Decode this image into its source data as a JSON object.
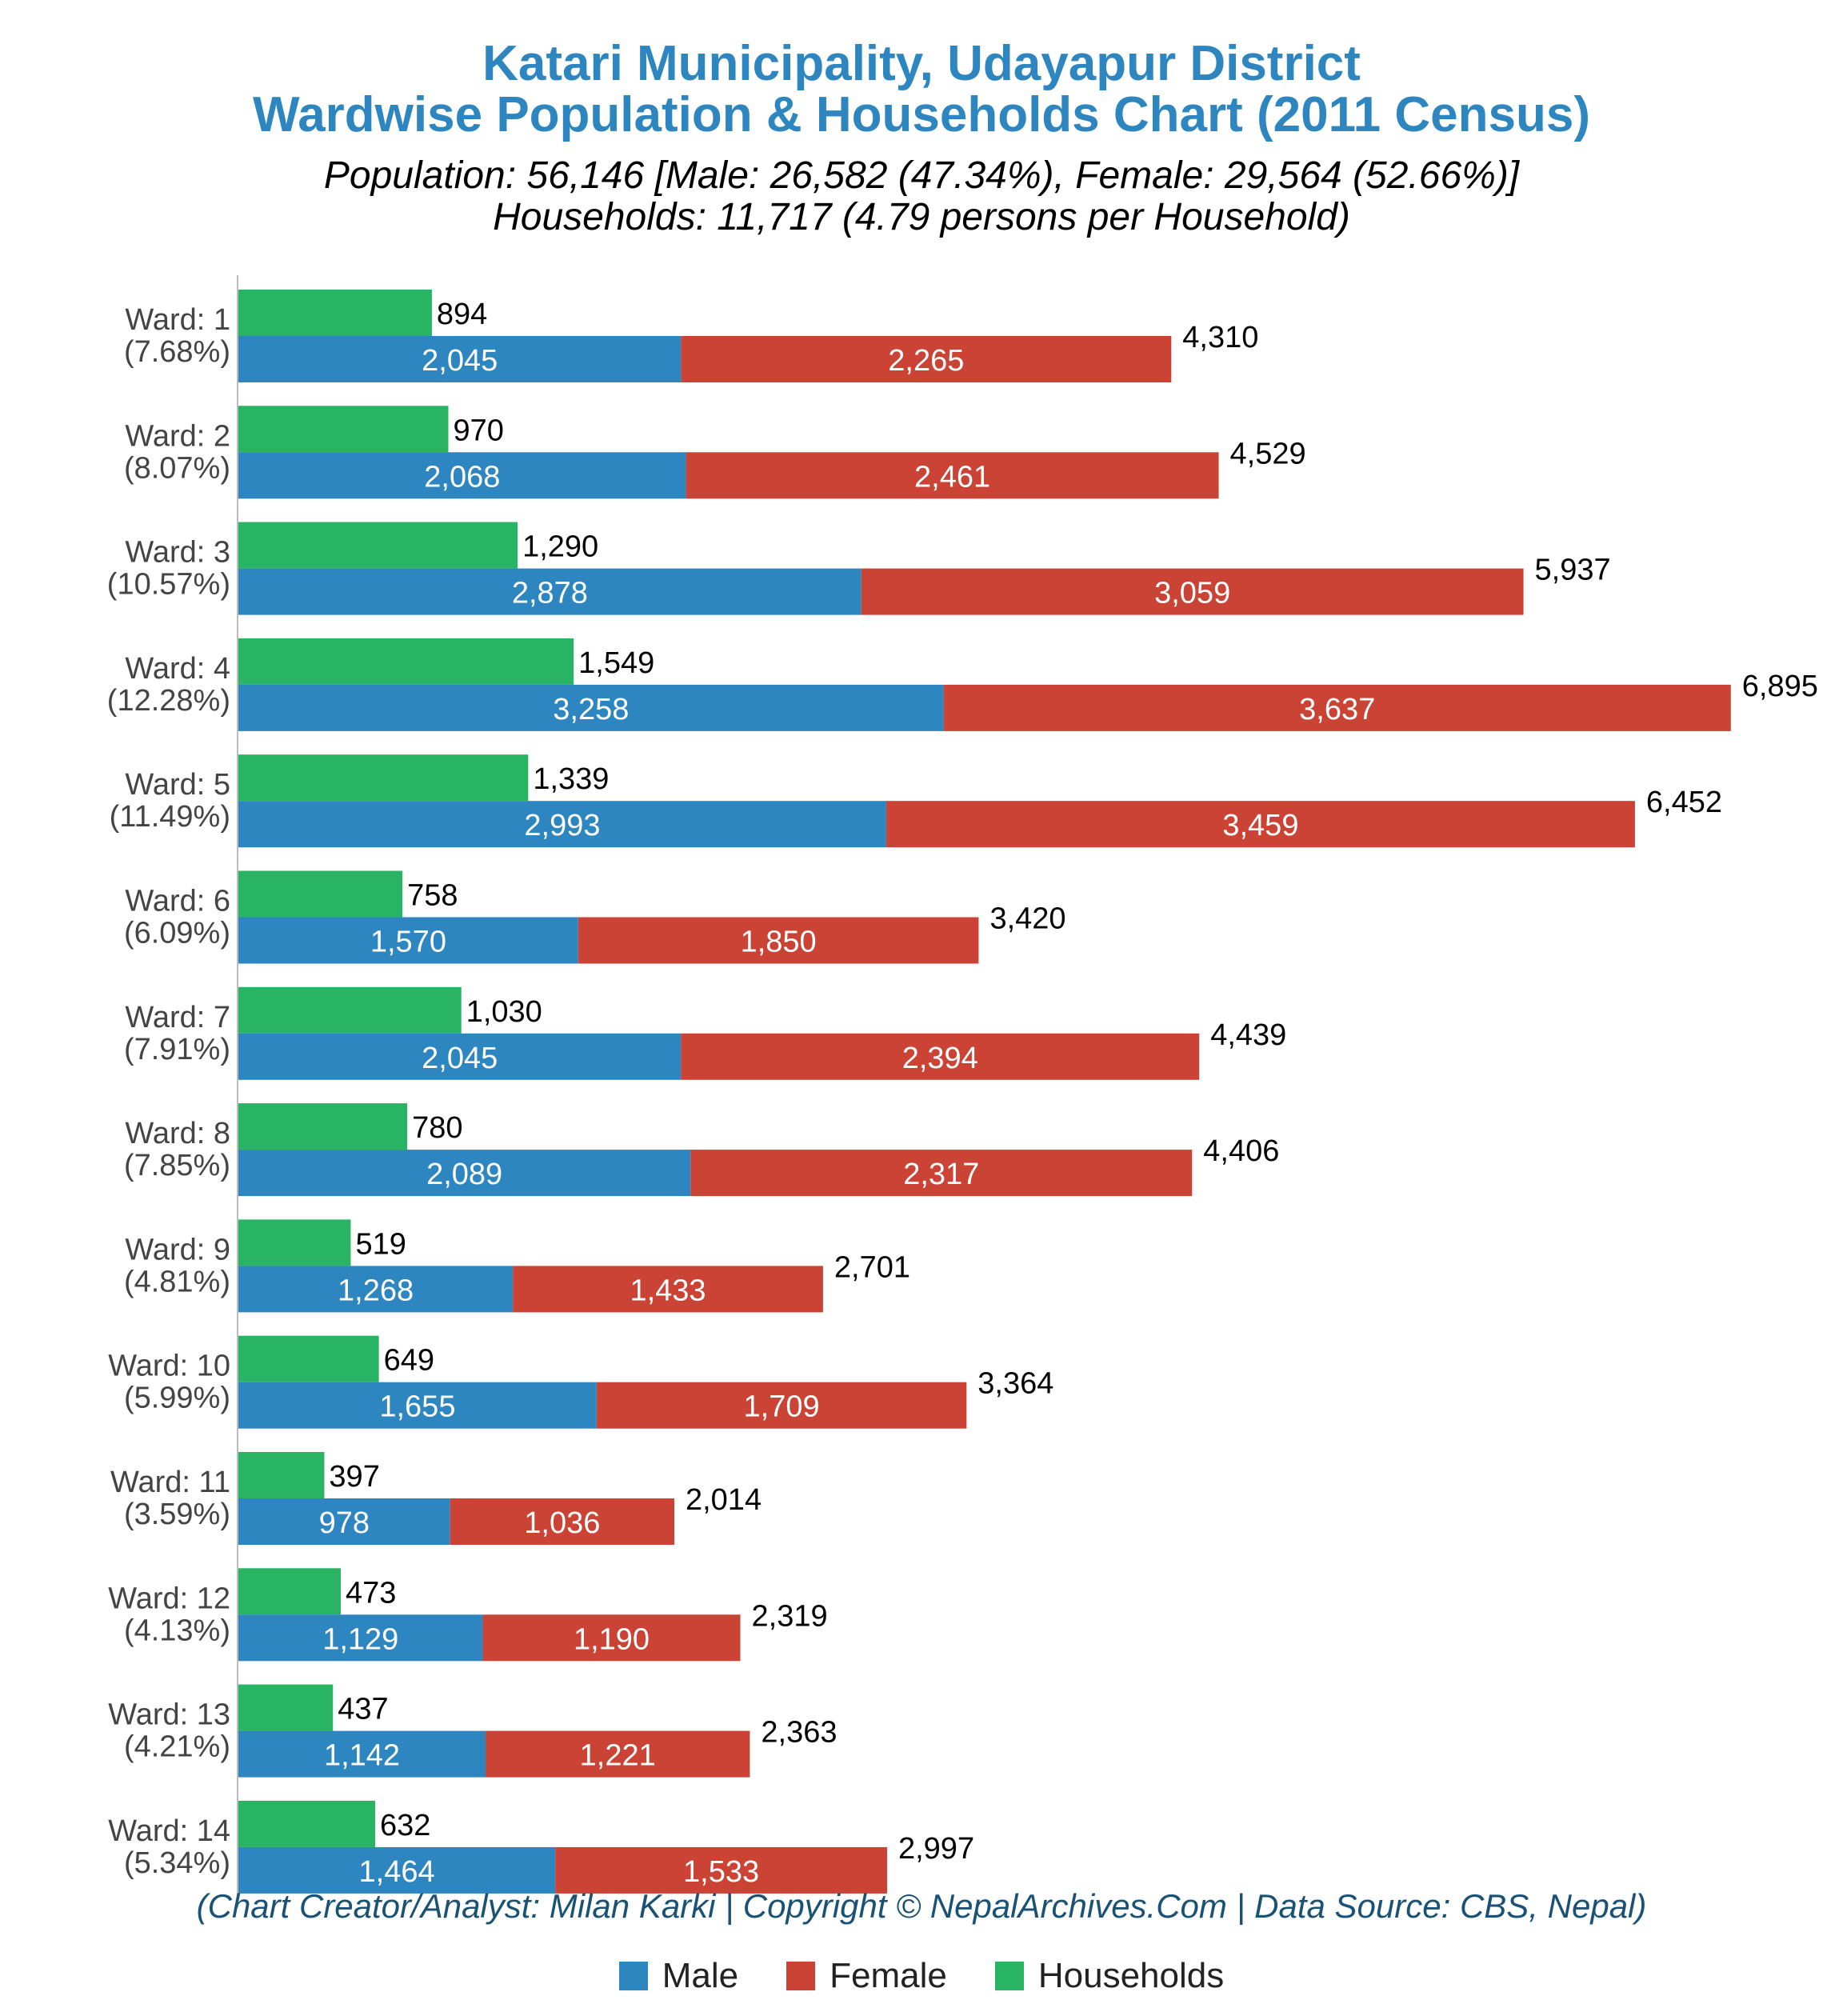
{
  "title_line1": "Katari Municipality, Udayapur District",
  "title_line2": "Wardwise Population & Households Chart (2011 Census)",
  "subtitle_line1": "Population: 56,146 [Male: 26,582 (47.34%), Female: 29,564 (52.66%)]",
  "subtitle_line2": "Households: 11,717 (4.79 persons per Household)",
  "footer": "(Chart Creator/Analyst: Milan Karki | Copyright © NepalArchives.Com | Data Source: CBS, Nepal)",
  "legend": [
    {
      "label": "Male",
      "color": "#2e86c1"
    },
    {
      "label": "Female",
      "color": "#cb4335"
    },
    {
      "label": "Households",
      "color": "#28b463"
    }
  ],
  "chart_data": {
    "type": "bar",
    "orientation": "horizontal",
    "stacked_series": [
      "Male",
      "Female"
    ],
    "xlim": [
      0,
      7000
    ],
    "categories": [
      "Ward: 1",
      "Ward: 2",
      "Ward: 3",
      "Ward: 4",
      "Ward: 5",
      "Ward: 6",
      "Ward: 7",
      "Ward: 8",
      "Ward: 9",
      "Ward: 10",
      "Ward: 11",
      "Ward: 12",
      "Ward: 13",
      "Ward: 14"
    ],
    "category_shares": [
      "(7.68%)",
      "(8.07%)",
      "(10.57%)",
      "(12.28%)",
      "(11.49%)",
      "(6.09%)",
      "(7.91%)",
      "(7.85%)",
      "(4.81%)",
      "(5.99%)",
      "(3.59%)",
      "(4.13%)",
      "(4.21%)",
      "(5.34%)"
    ],
    "series": [
      {
        "name": "Households",
        "values": [
          894,
          970,
          1290,
          1549,
          1339,
          758,
          1030,
          780,
          519,
          649,
          397,
          473,
          437,
          632
        ]
      },
      {
        "name": "Male",
        "values": [
          2045,
          2068,
          2878,
          3258,
          2993,
          1570,
          2045,
          2089,
          1268,
          1655,
          978,
          1129,
          1142,
          1464
        ]
      },
      {
        "name": "Female",
        "values": [
          2265,
          2461,
          3059,
          3637,
          3459,
          1850,
          2394,
          2317,
          1433,
          1709,
          1036,
          1190,
          1221,
          1533
        ]
      }
    ],
    "totals": [
      4310,
      4529,
      5937,
      6895,
      6452,
      3420,
      4439,
      4406,
      2701,
      3364,
      2014,
      2319,
      2363,
      2997
    ],
    "legend_position": "bottom",
    "grid": false
  }
}
